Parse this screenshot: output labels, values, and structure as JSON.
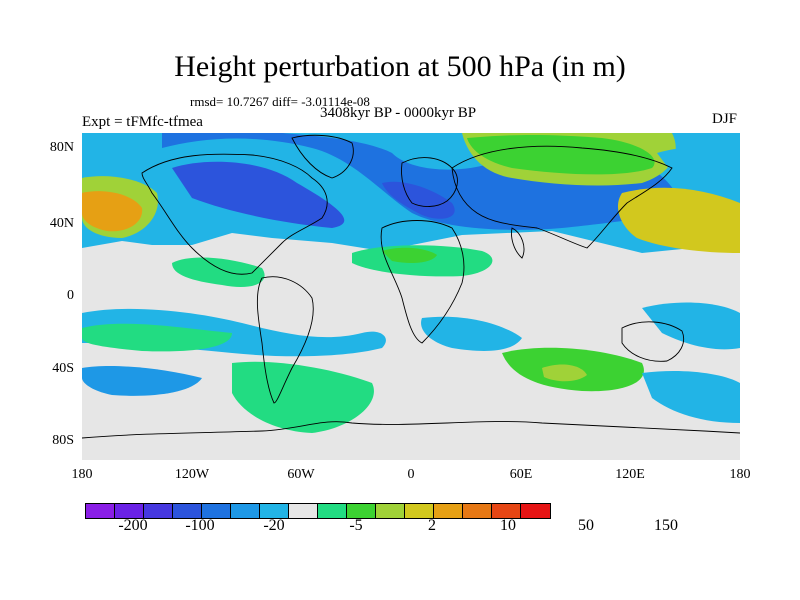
{
  "title": "Height perturbation at 500 hPa (in m)",
  "stats": "rmsd= 10.7267 diff= -3.01114e-08",
  "subtitle": "3408kyr BP - 0000kyr BP",
  "expt": "Expt = tFMfc-tfmea",
  "season": "DJF",
  "map": {
    "lat_labels": [
      "80N",
      "40N",
      "0",
      "40S",
      "80S"
    ],
    "lon_labels": [
      "180",
      "120W",
      "60W",
      "0",
      "60E",
      "120E",
      "180"
    ]
  },
  "colorbar": {
    "colors": [
      "#8a1ee6",
      "#6a22e6",
      "#4638e0",
      "#2c54dc",
      "#1e72e0",
      "#1e98e6",
      "#22b4e6",
      "#e6e6e6",
      "#22dc82",
      "#3cd232",
      "#a0d238",
      "#d2c81e",
      "#e6a014",
      "#e67814",
      "#e64614",
      "#e61414"
    ],
    "labels": [
      "-200",
      "-100",
      "-20",
      "-5",
      "2",
      "10",
      "50",
      "150"
    ]
  }
}
